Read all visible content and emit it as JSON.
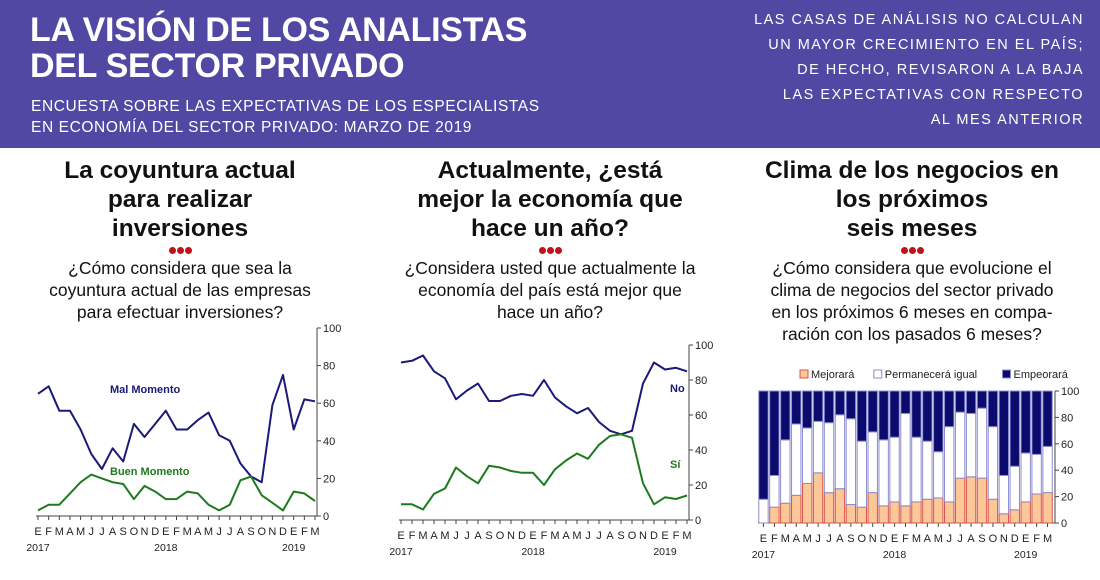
{
  "header": {
    "title_line1": "LA VISIÓN DE LOS ANALISTAS",
    "title_line2": "DEL SECTOR PRIVADO",
    "subtitle_line1": "ENCUESTA SOBRE LAS EXPECTATIVAS DE LOS ESPECIALISTAS",
    "subtitle_line2": "EN ECONOMÍA DEL SECTOR PRIVADO: MARZO DE 2019",
    "note_lines": [
      "LAS CASAS DE ANÁLISIS NO CALCULAN",
      "UN MAYOR CRECIMIENTO EN EL PAÍS;",
      "DE HECHO, REVISARON A LA BAJA",
      "LAS EXPECTATIVAS CON RESPECTO",
      "AL MES ANTERIOR"
    ],
    "background_color": "#5048a3"
  },
  "sections": [
    {
      "heading_lines": [
        "La coyuntura actual",
        "para realizar",
        "inversiones"
      ],
      "question_lines": [
        "¿Cómo considera que sea la",
        "coyuntura actual de las empresas",
        "para efectuar inversiones?"
      ]
    },
    {
      "heading_lines": [
        "Actualmente, ¿está",
        "mejor la economía que",
        "hace un año?"
      ],
      "question_lines": [
        "¿Considera usted que actualmente la",
        "economía del país está mejor que",
        "hace un año?"
      ]
    },
    {
      "heading_lines": [
        "Clima de los negocios en",
        "los próximos",
        "seis meses"
      ],
      "question_lines": [
        "¿Cómo considera que evolucione el",
        "clima de negocios del sector privado",
        "en los próximos 6 meses en compa-",
        "ración con los pasados 6 meses?"
      ]
    }
  ],
  "chart_data": [
    {
      "type": "line",
      "title": "La coyuntura actual para realizar inversiones",
      "x": [
        "E",
        "F",
        "M",
        "A",
        "M",
        "J",
        "J",
        "A",
        "S",
        "O",
        "N",
        "D",
        "E",
        "F",
        "M",
        "A",
        "M",
        "J",
        "J",
        "A",
        "S",
        "O",
        "N",
        "D",
        "E",
        "F",
        "M"
      ],
      "year_labels": [
        {
          "label": "2017",
          "index": 0
        },
        {
          "label": "2018",
          "index": 12
        },
        {
          "label": "2019",
          "index": 24
        }
      ],
      "ylim": [
        0,
        100
      ],
      "yticks": [
        0,
        20,
        40,
        60,
        80,
        100
      ],
      "series": [
        {
          "name": "Mal Momento",
          "color": "#1a1a78",
          "values": [
            65,
            69,
            56,
            56,
            46,
            33,
            25,
            36,
            29,
            49,
            42,
            49,
            56,
            46,
            46,
            51,
            55,
            43,
            40,
            28,
            21,
            18,
            59,
            75,
            46,
            62,
            61
          ]
        },
        {
          "name": "Buen Momento",
          "color": "#1e7a1e",
          "values": [
            3,
            6,
            6,
            12,
            18,
            22,
            20,
            18,
            17,
            9,
            16,
            13,
            9,
            9,
            13,
            12,
            6,
            3,
            6,
            19,
            21,
            11,
            7,
            3,
            13,
            12,
            8
          ]
        }
      ]
    },
    {
      "type": "line",
      "title": "Actualmente, ¿está mejor la economía que hace un año?",
      "x": [
        "E",
        "F",
        "M",
        "A",
        "M",
        "J",
        "J",
        "A",
        "S",
        "O",
        "N",
        "D",
        "E",
        "F",
        "M",
        "A",
        "M",
        "J",
        "J",
        "A",
        "S",
        "O",
        "N",
        "D",
        "E",
        "F",
        "M"
      ],
      "year_labels": [
        {
          "label": "2017",
          "index": 0
        },
        {
          "label": "2018",
          "index": 12
        },
        {
          "label": "2019",
          "index": 24
        }
      ],
      "ylim": [
        0,
        100
      ],
      "yticks": [
        0,
        20,
        40,
        60,
        80,
        100
      ],
      "series": [
        {
          "name": "No",
          "color": "#1a1a78",
          "values": [
            90,
            91,
            94,
            85,
            81,
            69,
            74,
            78,
            68,
            68,
            71,
            72,
            71,
            80,
            70,
            65,
            61,
            64,
            56,
            51,
            49,
            51,
            78,
            90,
            86,
            87,
            85
          ]
        },
        {
          "name": "Sí",
          "color": "#1e7a1e",
          "values": [
            9,
            9,
            6,
            15,
            18,
            30,
            25,
            21,
            31,
            30,
            28,
            27,
            27,
            20,
            29,
            34,
            38,
            35,
            43,
            48,
            49,
            47,
            21,
            9,
            13,
            12,
            14
          ]
        }
      ]
    },
    {
      "type": "bar",
      "stacked": true,
      "title": "Clima de los negocios en los próximos seis meses",
      "categories": [
        "E",
        "F",
        "M",
        "A",
        "M",
        "J",
        "J",
        "A",
        "S",
        "O",
        "N",
        "D",
        "E",
        "F",
        "M",
        "A",
        "M",
        "J",
        "J",
        "A",
        "S",
        "O",
        "N",
        "D",
        "E",
        "F",
        "M"
      ],
      "year_labels": [
        {
          "label": "2017",
          "index": 0
        },
        {
          "label": "2018",
          "index": 12
        },
        {
          "label": "2019",
          "index": 24
        }
      ],
      "ylim": [
        0,
        100
      ],
      "yticks": [
        0,
        20,
        40,
        60,
        80,
        100
      ],
      "legend_position": "top",
      "series": [
        {
          "name": "Mejorará",
          "color": "#fcc898",
          "edge": "#d9534f",
          "values": [
            0,
            12,
            15,
            21,
            30,
            38,
            23,
            26,
            14,
            12,
            23,
            13,
            16,
            13,
            16,
            18,
            19,
            16,
            34,
            35,
            34,
            18,
            7,
            10,
            16,
            22,
            23
          ]
        },
        {
          "name": "Permanecerá igual",
          "color": "#ffffff",
          "edge": "#8c8cd0",
          "values": [
            18,
            24,
            48,
            54,
            42,
            39,
            53,
            56,
            65,
            50,
            46,
            50,
            49,
            70,
            49,
            44,
            35,
            57,
            50,
            48,
            53,
            55,
            29,
            33,
            37,
            30,
            35
          ]
        },
        {
          "name": "Empeorará",
          "color": "#0b0b6e",
          "edge": "#8c8cd0",
          "values": [
            82,
            64,
            37,
            25,
            28,
            23,
            24,
            18,
            21,
            38,
            31,
            37,
            35,
            17,
            35,
            38,
            46,
            27,
            16,
            17,
            13,
            27,
            64,
            57,
            47,
            48,
            42
          ]
        }
      ]
    }
  ]
}
